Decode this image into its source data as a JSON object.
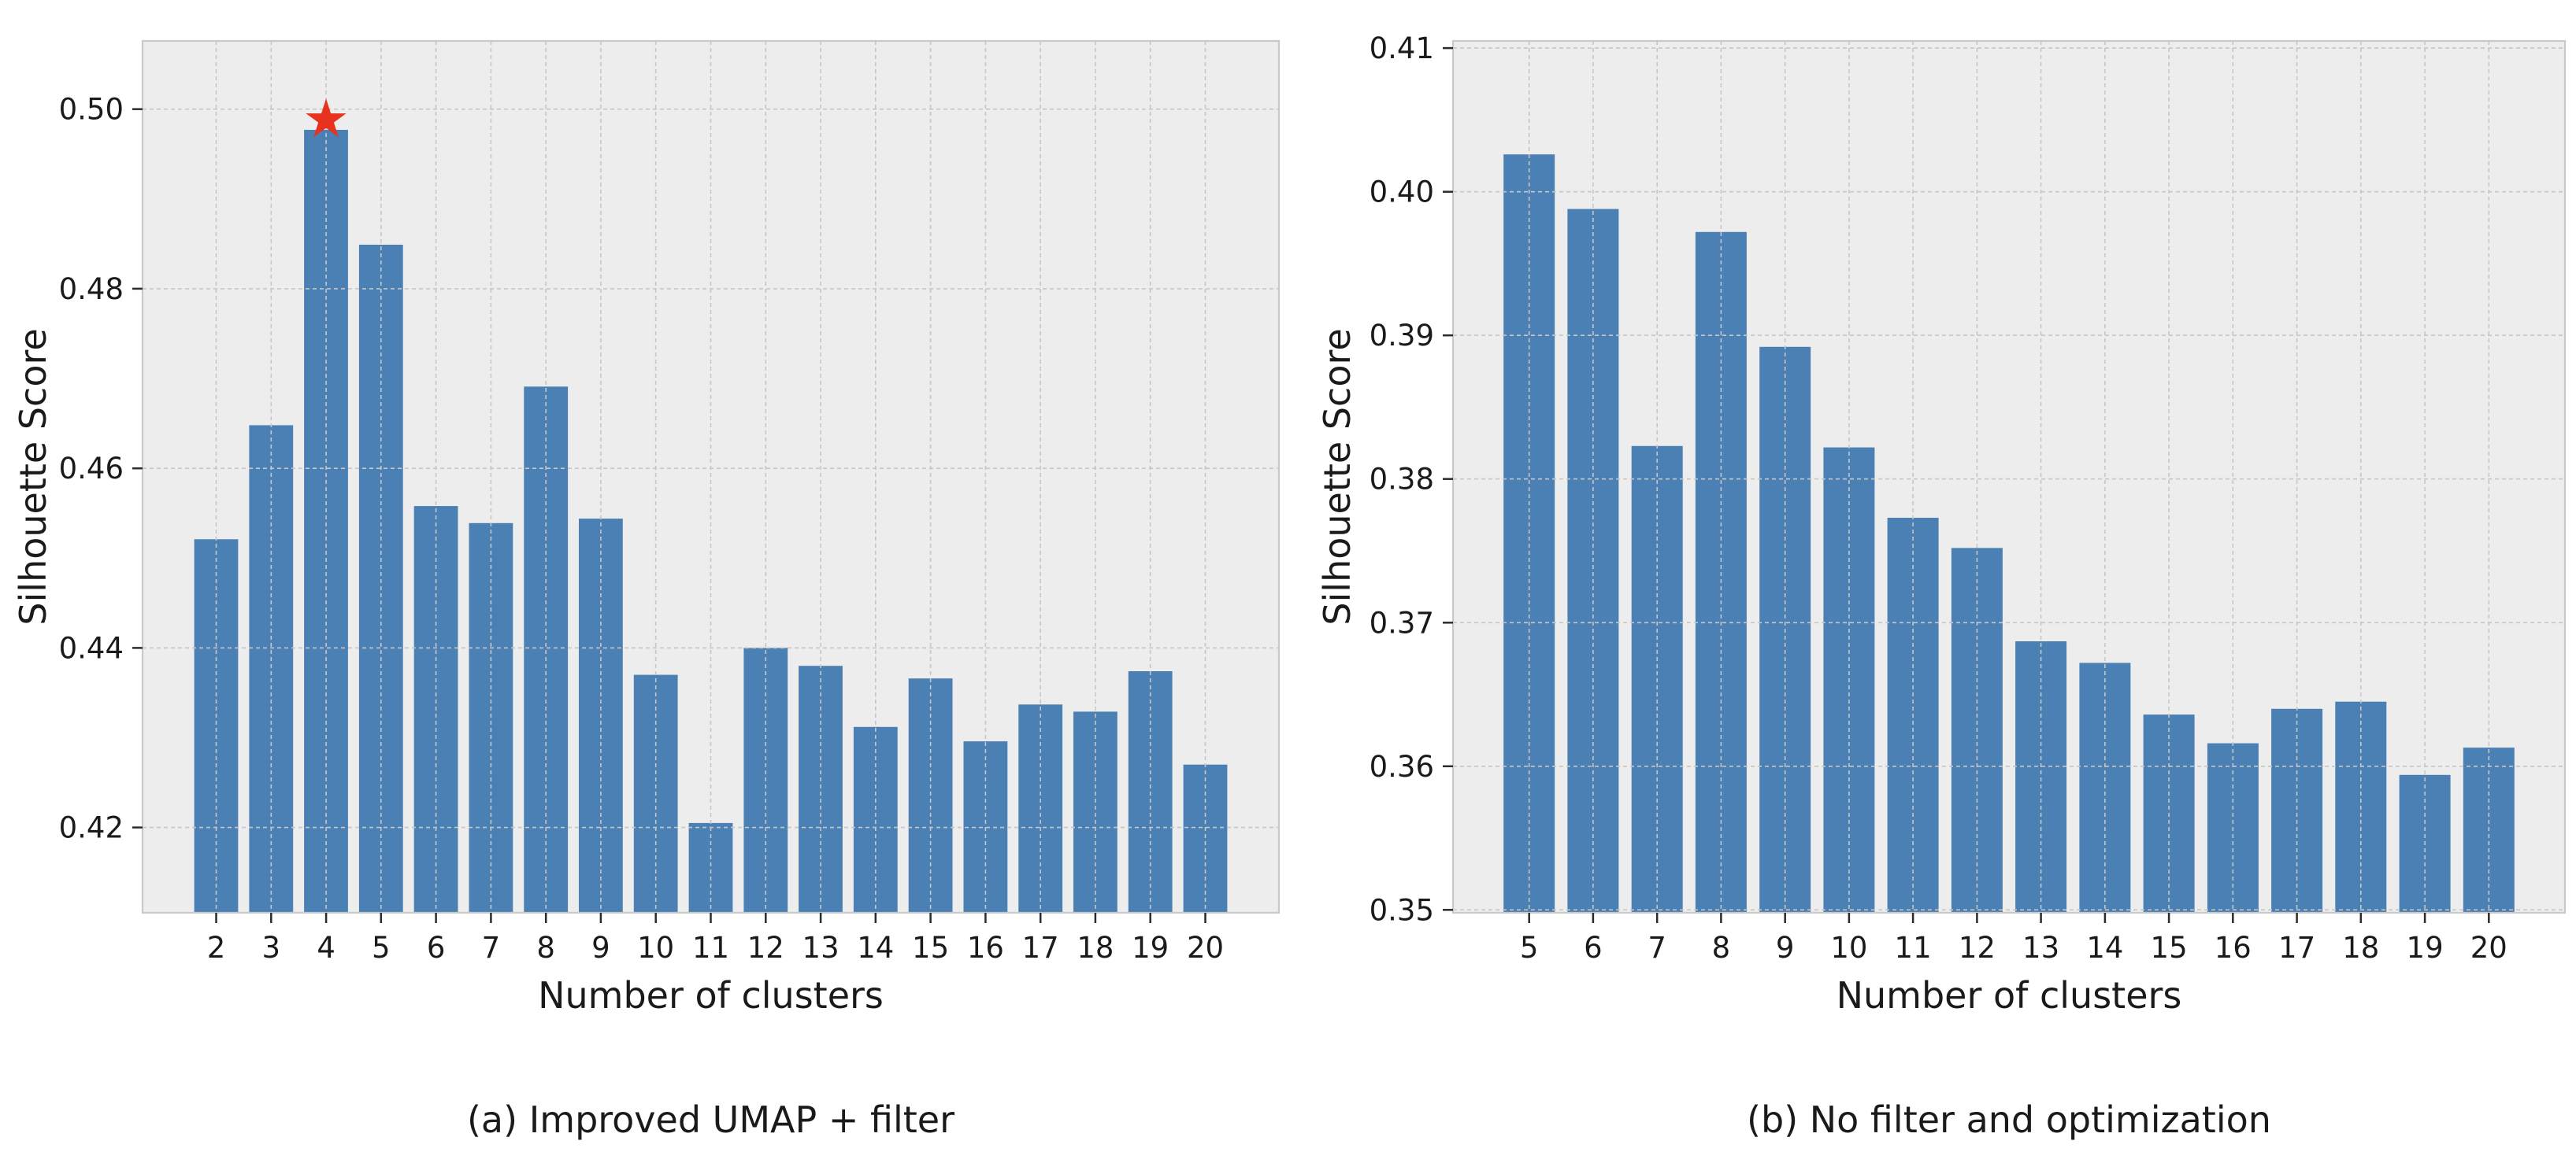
{
  "figure": {
    "background": "#ffffff"
  },
  "style": {
    "bar_color": "#4a80b4",
    "plot_background": "#ededed",
    "grid_color": "#c6c6c6",
    "spine_color": "#c9c9c9",
    "tick_mark_color": "#2b2b2b",
    "tick_label_color": "#1a1a1a",
    "star_color": "#e8311f"
  },
  "chart_data": [
    {
      "type": "bar",
      "caption": "(a) Improved UMAP + filter",
      "xlabel": "Number of clusters",
      "ylabel": "Silhouette Score",
      "categories": [
        "2",
        "3",
        "4",
        "5",
        "6",
        "7",
        "8",
        "9",
        "10",
        "11",
        "12",
        "13",
        "14",
        "15",
        "16",
        "17",
        "18",
        "19",
        "20"
      ],
      "values": [
        0.4521,
        0.4648,
        0.4977,
        0.4849,
        0.4558,
        0.4539,
        0.4691,
        0.4544,
        0.437,
        0.4205,
        0.44,
        0.438,
        0.4312,
        0.4366,
        0.4296,
        0.4337,
        0.4329,
        0.4374,
        0.427
      ],
      "ylim": [
        0.4105,
        0.5076
      ],
      "ytick_values": [
        0.42,
        0.44,
        0.46,
        0.48,
        0.5
      ],
      "ytick_labels": [
        "0.42",
        "0.44",
        "0.46",
        "0.48",
        "0.50"
      ],
      "grid": "dashed, horizontal and vertical, drawn over bars",
      "legend": "none",
      "annotation": {
        "marker": "star",
        "category": "4",
        "value": 0.4988,
        "meaning": "best silhouette score"
      }
    },
    {
      "type": "bar",
      "caption": "(b) No filter and optimization",
      "xlabel": "Number of clusters",
      "ylabel": "Silhouette Score",
      "categories": [
        "5",
        "6",
        "7",
        "8",
        "9",
        "10",
        "11",
        "12",
        "13",
        "14",
        "15",
        "16",
        "17",
        "18",
        "19",
        "20"
      ],
      "values": [
        0.4026,
        0.3988,
        0.3823,
        0.3972,
        0.3892,
        0.3822,
        0.3773,
        0.3752,
        0.3687,
        0.3672,
        0.3636,
        0.3616,
        0.364,
        0.3645,
        0.3594,
        0.3613
      ],
      "ylim": [
        0.3498,
        0.4105
      ],
      "ytick_values": [
        0.35,
        0.36,
        0.37,
        0.38,
        0.39,
        0.4,
        0.41
      ],
      "ytick_labels": [
        "0.35",
        "0.36",
        "0.37",
        "0.38",
        "0.39",
        "0.40",
        "0.41"
      ],
      "grid": "dashed, horizontal and vertical, drawn over bars",
      "legend": "none",
      "annotation": null
    }
  ]
}
